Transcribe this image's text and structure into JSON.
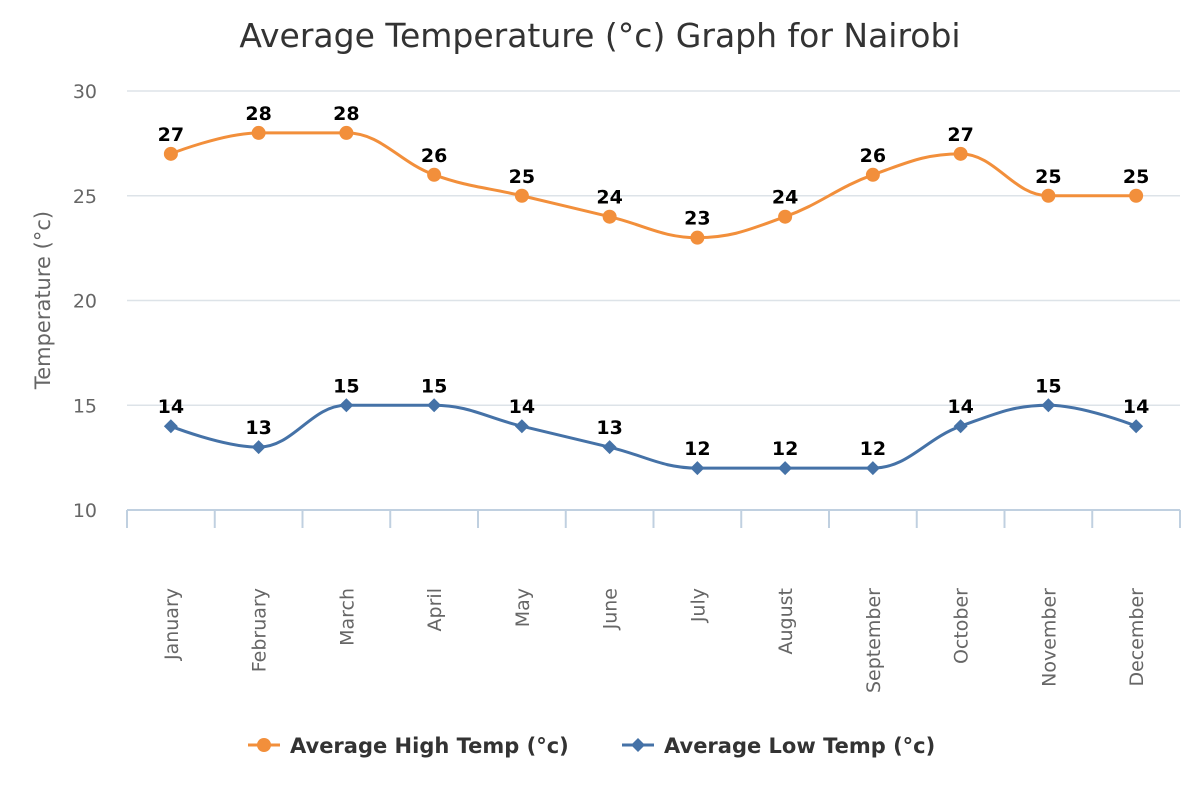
{
  "chart_data": {
    "type": "line",
    "title": "Average Temperature (°c) Graph for Nairobi",
    "ylabel": "Temperature (°c)",
    "xlabel": "",
    "ylim": [
      10,
      30
    ],
    "yticks": [
      10,
      15,
      20,
      25,
      30
    ],
    "grid": true,
    "legend": "bottom-center",
    "categories": [
      "January",
      "February",
      "March",
      "April",
      "May",
      "June",
      "July",
      "August",
      "September",
      "October",
      "November",
      "December"
    ],
    "series": [
      {
        "name": "Average High Temp (°c)",
        "color": "#f28f3b",
        "marker": "circle",
        "values": [
          27,
          28,
          28,
          26,
          25,
          24,
          23,
          24,
          26,
          27,
          25,
          25
        ]
      },
      {
        "name": "Average Low Temp (°c)",
        "color": "#4572a7",
        "marker": "diamond",
        "values": [
          14,
          13,
          15,
          15,
          14,
          13,
          12,
          12,
          12,
          14,
          15,
          14
        ]
      }
    ]
  }
}
